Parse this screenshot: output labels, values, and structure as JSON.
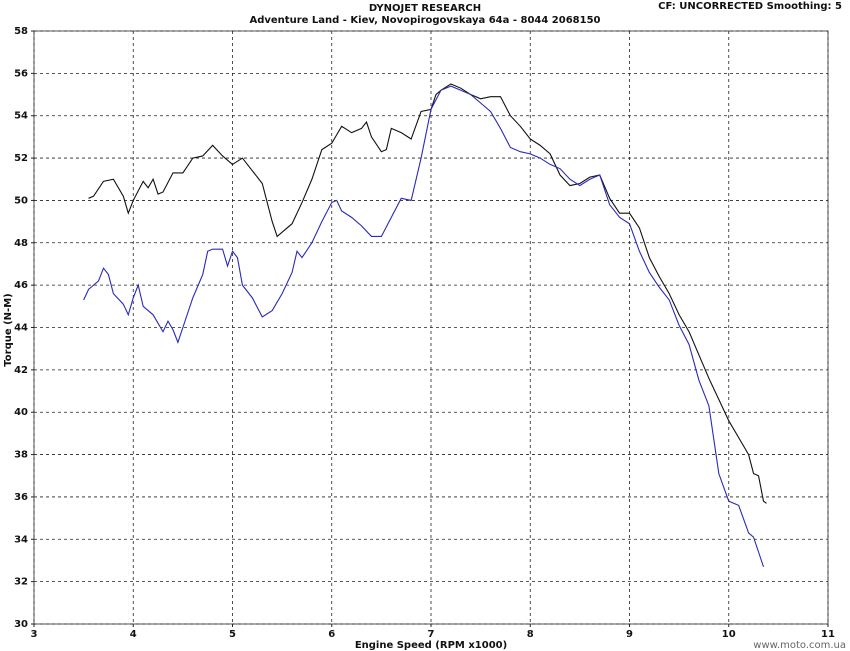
{
  "chart_data": {
    "type": "line",
    "title": "DYNOJET RESEARCH",
    "subtitle": "Adventure Land - Kiev, Novopirogovskaya 64a - 8044 2068150",
    "header_note": "CF: UNCORRECTED  Smoothing: 5",
    "x_label": "Engine Speed (RPM x1000)",
    "y_label": "Torque (N-M)",
    "watermark": "www.moto.com.ua",
    "xlim": [
      3,
      11
    ],
    "xticks": [
      3,
      4,
      5,
      6,
      7,
      8,
      9,
      10,
      11
    ],
    "ylim": [
      30,
      58
    ],
    "yticks": [
      30,
      32,
      34,
      36,
      38,
      40,
      42,
      44,
      46,
      48,
      50,
      52,
      54,
      56,
      58
    ],
    "grid": true,
    "series": [
      {
        "color": "#111111",
        "x": [
          3.55,
          3.6,
          3.7,
          3.8,
          3.9,
          3.95,
          4.0,
          4.1,
          4.15,
          4.2,
          4.25,
          4.3,
          4.4,
          4.5,
          4.6,
          4.7,
          4.8,
          4.9,
          5.0,
          5.1,
          5.2,
          5.3,
          5.4,
          5.45,
          5.5,
          5.6,
          5.7,
          5.8,
          5.9,
          6.0,
          6.05,
          6.1,
          6.2,
          6.3,
          6.35,
          6.4,
          6.5,
          6.55,
          6.6,
          6.7,
          6.8,
          6.9,
          7.0,
          7.05,
          7.1,
          7.2,
          7.3,
          7.4,
          7.5,
          7.6,
          7.7,
          7.8,
          7.9,
          8.0,
          8.1,
          8.2,
          8.3,
          8.4,
          8.5,
          8.6,
          8.7,
          8.8,
          8.9,
          9.0,
          9.1,
          9.2,
          9.3,
          9.4,
          9.5,
          9.6,
          9.7,
          9.8,
          9.9,
          10.0,
          10.1,
          10.2,
          10.25,
          10.3,
          10.35,
          10.38
        ],
        "values": [
          50.1,
          50.2,
          50.9,
          51.0,
          50.2,
          49.4,
          50.0,
          50.9,
          50.6,
          51.0,
          50.3,
          50.4,
          51.3,
          51.3,
          52.0,
          52.1,
          52.6,
          52.1,
          51.7,
          52.0,
          51.4,
          50.8,
          49.0,
          48.3,
          48.5,
          48.9,
          49.9,
          51.0,
          52.4,
          52.7,
          53.1,
          53.5,
          53.2,
          53.4,
          53.7,
          53.0,
          52.3,
          52.4,
          53.4,
          53.2,
          52.9,
          54.2,
          54.3,
          55.0,
          55.2,
          55.5,
          55.3,
          55.0,
          54.8,
          54.9,
          54.9,
          54.0,
          53.5,
          52.9,
          52.6,
          52.2,
          51.2,
          50.7,
          50.8,
          51.1,
          51.2,
          50.1,
          49.4,
          49.4,
          48.7,
          47.3,
          46.4,
          45.6,
          44.6,
          43.8,
          42.7,
          41.6,
          40.6,
          39.6,
          38.8,
          38.0,
          37.1,
          37.0,
          35.8,
          35.7
        ]
      },
      {
        "color": "#2a2ab8",
        "x": [
          3.5,
          3.55,
          3.6,
          3.65,
          3.7,
          3.75,
          3.8,
          3.9,
          3.95,
          4.0,
          4.05,
          4.1,
          4.2,
          4.3,
          4.35,
          4.4,
          4.45,
          4.5,
          4.6,
          4.7,
          4.75,
          4.8,
          4.9,
          4.95,
          5.0,
          5.05,
          5.1,
          5.2,
          5.3,
          5.4,
          5.5,
          5.6,
          5.65,
          5.7,
          5.8,
          5.9,
          6.0,
          6.05,
          6.1,
          6.2,
          6.3,
          6.4,
          6.5,
          6.6,
          6.7,
          6.8,
          6.9,
          7.0,
          7.1,
          7.2,
          7.3,
          7.4,
          7.5,
          7.6,
          7.7,
          7.8,
          7.9,
          8.0,
          8.1,
          8.2,
          8.3,
          8.4,
          8.5,
          8.6,
          8.7,
          8.8,
          8.9,
          9.0,
          9.1,
          9.2,
          9.3,
          9.4,
          9.5,
          9.6,
          9.7,
          9.8,
          9.9,
          10.0,
          10.1,
          10.2,
          10.25,
          10.3,
          10.35
        ],
        "values": [
          45.3,
          45.8,
          46.0,
          46.2,
          46.8,
          46.5,
          45.6,
          45.1,
          44.6,
          45.4,
          46.0,
          45.0,
          44.6,
          43.8,
          44.3,
          43.9,
          43.3,
          44.0,
          45.4,
          46.5,
          47.6,
          47.7,
          47.7,
          46.9,
          47.6,
          47.3,
          46.0,
          45.4,
          44.5,
          44.8,
          45.6,
          46.6,
          47.6,
          47.3,
          48.0,
          49.0,
          49.9,
          50.0,
          49.5,
          49.2,
          48.8,
          48.3,
          48.3,
          49.2,
          50.1,
          50.0,
          52.0,
          54.3,
          55.2,
          55.4,
          55.2,
          55.0,
          54.6,
          54.2,
          53.4,
          52.5,
          52.3,
          52.2,
          52.0,
          51.7,
          51.5,
          51.0,
          50.7,
          51.0,
          51.2,
          49.8,
          49.2,
          48.9,
          47.6,
          46.6,
          45.9,
          45.3,
          44.1,
          43.2,
          41.5,
          40.3,
          37.1,
          35.8,
          35.6,
          34.3,
          34.1,
          33.4,
          32.7
        ]
      }
    ]
  }
}
